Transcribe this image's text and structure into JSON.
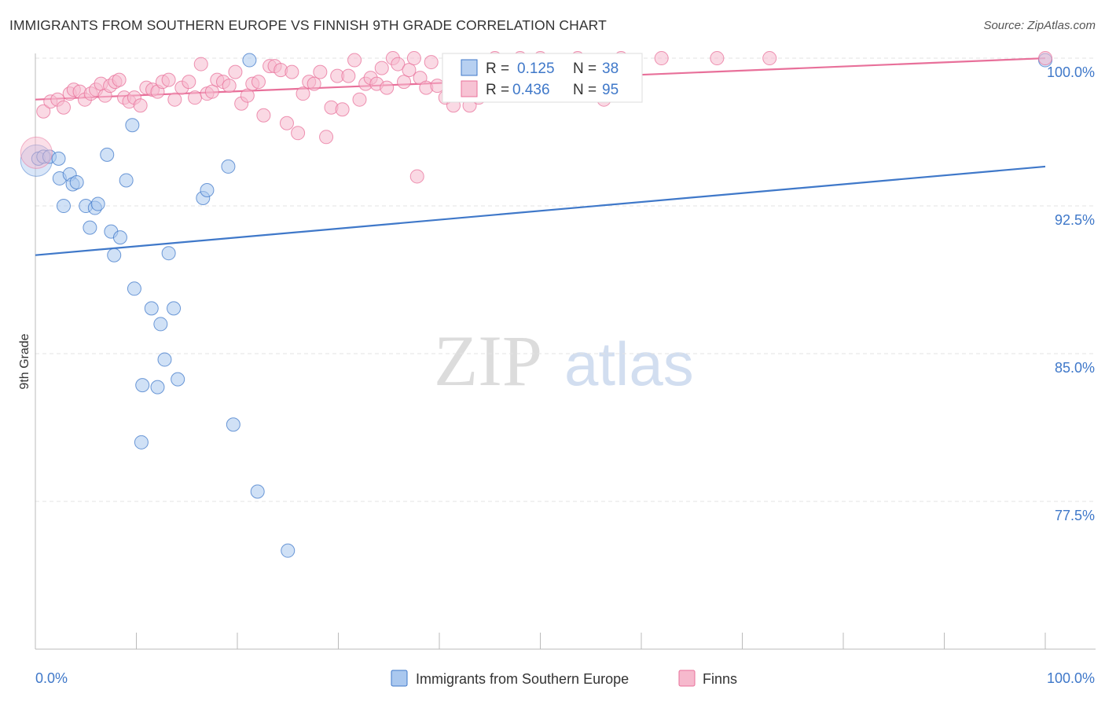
{
  "title": "IMMIGRANTS FROM SOUTHERN EUROPE VS FINNISH 9TH GRADE CORRELATION CHART",
  "source": "Source: ZipAtlas.com",
  "watermark": {
    "zip": "ZIP",
    "atlas": "atlas"
  },
  "colors": {
    "blue": "#3f78c9",
    "blue_fill": "#aac8ef",
    "pink": "#e8709a",
    "pink_fill": "#f6b9cd"
  },
  "legend": {
    "rows": [
      {
        "r_label": "R =",
        "r_value": "0.125",
        "n_label": "N =",
        "n_value": "38"
      },
      {
        "r_label": "R =",
        "r_value": "0.436",
        "n_label": "N =",
        "n_value": "95"
      }
    ]
  },
  "chart_data": {
    "type": "scatter",
    "title": "IMMIGRANTS FROM SOUTHERN EUROPE VS FINNISH 9TH GRADE CORRELATION CHART",
    "xlabel": "",
    "ylabel": "9th Grade",
    "xlim": [
      0,
      100
    ],
    "ylim": [
      70.0,
      100.8
    ],
    "x_tick_labels": [
      "0.0%",
      "100.0%"
    ],
    "y_ticks": [
      100.0,
      92.5,
      85.0,
      77.5
    ],
    "y_tick_labels": [
      "100.0%",
      "92.5%",
      "85.0%",
      "77.5%"
    ],
    "series": [
      {
        "name": "Immigrants from Southern Europe",
        "color": "blue",
        "r": 0.125,
        "n": 38,
        "trend": [
          [
            0,
            90.0
          ],
          [
            100,
            94.5
          ]
        ],
        "points": [
          [
            0.3,
            94.9
          ],
          [
            0.8,
            95.0
          ],
          [
            1.4,
            95.0
          ],
          [
            2.3,
            94.9
          ],
          [
            2.4,
            93.9
          ],
          [
            3.4,
            94.1
          ],
          [
            3.7,
            93.6
          ],
          [
            4.1,
            93.7
          ],
          [
            2.8,
            92.5
          ],
          [
            5.0,
            92.5
          ],
          [
            5.9,
            92.4
          ],
          [
            6.2,
            92.6
          ],
          [
            5.4,
            91.4
          ],
          [
            7.5,
            91.2
          ],
          [
            8.4,
            90.9
          ],
          [
            7.8,
            90.0
          ],
          [
            7.1,
            95.1
          ],
          [
            9.0,
            93.8
          ],
          [
            9.6,
            96.6
          ],
          [
            16.6,
            92.9
          ],
          [
            17.0,
            93.3
          ],
          [
            19.1,
            94.5
          ],
          [
            21.2,
            99.9
          ],
          [
            13.2,
            90.1
          ],
          [
            9.8,
            88.3
          ],
          [
            11.5,
            87.3
          ],
          [
            13.7,
            87.3
          ],
          [
            12.4,
            86.5
          ],
          [
            12.8,
            84.7
          ],
          [
            14.1,
            83.7
          ],
          [
            10.6,
            83.4
          ],
          [
            12.1,
            83.3
          ],
          [
            19.6,
            81.4
          ],
          [
            10.5,
            80.5
          ],
          [
            22.0,
            78.0
          ],
          [
            25.0,
            75.0
          ],
          [
            100.0,
            99.9
          ]
        ],
        "big_points": [
          [
            0.1,
            94.8
          ]
        ]
      },
      {
        "name": "Finns",
        "color": "pink",
        "r": 0.436,
        "n": 95,
        "trend": [
          [
            0,
            97.9
          ],
          [
            100,
            100.0
          ]
        ],
        "points": [
          [
            0.8,
            97.3
          ],
          [
            1.5,
            97.8
          ],
          [
            2.2,
            97.9
          ],
          [
            2.8,
            97.5
          ],
          [
            3.4,
            98.2
          ],
          [
            3.8,
            98.4
          ],
          [
            4.4,
            98.3
          ],
          [
            4.9,
            97.9
          ],
          [
            5.5,
            98.2
          ],
          [
            6.0,
            98.4
          ],
          [
            6.5,
            98.7
          ],
          [
            6.9,
            98.1
          ],
          [
            7.4,
            98.6
          ],
          [
            7.9,
            98.8
          ],
          [
            8.3,
            98.9
          ],
          [
            8.8,
            98.0
          ],
          [
            9.3,
            97.8
          ],
          [
            9.8,
            98.0
          ],
          [
            10.4,
            97.6
          ],
          [
            11.0,
            98.5
          ],
          [
            11.6,
            98.4
          ],
          [
            12.1,
            98.3
          ],
          [
            12.6,
            98.8
          ],
          [
            13.2,
            98.9
          ],
          [
            13.8,
            97.9
          ],
          [
            14.5,
            98.5
          ],
          [
            15.2,
            98.8
          ],
          [
            15.8,
            98.0
          ],
          [
            16.4,
            99.7
          ],
          [
            17.0,
            98.2
          ],
          [
            17.5,
            98.3
          ],
          [
            18.0,
            98.9
          ],
          [
            18.6,
            98.8
          ],
          [
            19.2,
            98.6
          ],
          [
            19.8,
            99.3
          ],
          [
            20.4,
            97.7
          ],
          [
            21.0,
            98.1
          ],
          [
            21.5,
            98.7
          ],
          [
            22.1,
            98.8
          ],
          [
            22.6,
            97.1
          ],
          [
            23.2,
            99.6
          ],
          [
            23.7,
            99.6
          ],
          [
            24.3,
            99.4
          ],
          [
            24.9,
            96.7
          ],
          [
            25.4,
            99.3
          ],
          [
            26.0,
            96.2
          ],
          [
            26.5,
            98.2
          ],
          [
            27.1,
            98.8
          ],
          [
            27.6,
            98.7
          ],
          [
            28.2,
            99.3
          ],
          [
            28.8,
            96.0
          ],
          [
            29.3,
            97.5
          ],
          [
            29.9,
            99.1
          ],
          [
            30.4,
            97.4
          ],
          [
            31.0,
            99.1
          ],
          [
            31.6,
            99.9
          ],
          [
            32.1,
            97.9
          ],
          [
            32.7,
            98.7
          ],
          [
            33.2,
            99.0
          ],
          [
            33.8,
            98.7
          ],
          [
            34.3,
            99.5
          ],
          [
            34.8,
            98.5
          ],
          [
            35.4,
            100.0
          ],
          [
            35.9,
            99.7
          ],
          [
            36.5,
            98.8
          ],
          [
            37.0,
            99.4
          ],
          [
            37.5,
            100.0
          ],
          [
            38.1,
            99.0
          ],
          [
            38.7,
            98.5
          ],
          [
            39.2,
            99.8
          ],
          [
            39.8,
            98.6
          ],
          [
            40.6,
            98.0
          ],
          [
            41.4,
            97.6
          ],
          [
            42.2,
            98.6
          ],
          [
            43.0,
            97.6
          ],
          [
            43.9,
            98.0
          ],
          [
            44.7,
            99.7
          ],
          [
            45.5,
            100.0
          ],
          [
            46.3,
            99.0
          ],
          [
            47.2,
            99.4
          ],
          [
            48.0,
            100.0
          ],
          [
            49.0,
            99.5
          ],
          [
            50.0,
            100.0
          ],
          [
            52.0,
            99.6
          ],
          [
            53.0,
            99.3
          ],
          [
            53.7,
            100.0
          ],
          [
            55.5,
            99.6
          ],
          [
            56.3,
            97.9
          ],
          [
            56.9,
            99.4
          ],
          [
            58.0,
            100.0
          ],
          [
            62.0,
            100.0
          ],
          [
            67.5,
            100.0
          ],
          [
            72.7,
            100.0
          ],
          [
            37.8,
            94.0
          ],
          [
            100.0,
            100.0
          ]
        ],
        "big_points": [
          [
            0.1,
            95.2
          ]
        ]
      }
    ]
  },
  "bottom_legend": [
    {
      "label": "Immigrants from Southern Europe",
      "color": "blue"
    },
    {
      "label": "Finns",
      "color": "pink"
    }
  ]
}
